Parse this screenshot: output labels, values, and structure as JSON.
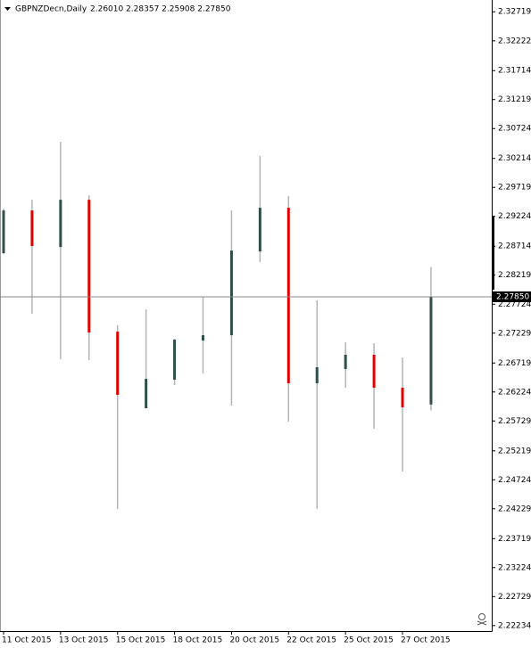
{
  "chart_data": {
    "type": "candlestick",
    "symbol": "GBPNZDecn,Daily",
    "ohlc_text": "2.26010 2.28357 2.25908 2.27850",
    "categories": [
      "11 Oct 2015",
      null,
      "13 Oct 2015",
      null,
      "15 Oct 2015",
      null,
      "18 Oct 2015",
      null,
      "20 Oct 2015",
      null,
      "22 Oct 2015",
      null,
      "25 Oct 2015",
      null,
      "27 Oct 2015",
      null
    ],
    "open": [
      2.28595,
      2.29325,
      2.28701,
      2.29508,
      2.27255,
      2.25946,
      2.26434,
      2.27103,
      2.27194,
      2.28625,
      2.29371,
      2.26373,
      2.26616,
      2.2686,
      2.26297,
      2.2601
    ],
    "high": [
      2.29356,
      2.29508,
      2.30497,
      2.29584,
      2.27362,
      2.27636,
      2.27134,
      2.27849,
      2.29325,
      2.30254,
      2.29569,
      2.27788,
      2.27073,
      2.27058,
      2.26814,
      2.28357
    ],
    "low": [
      2.28579,
      2.2756,
      2.26783,
      2.26768,
      2.24227,
      2.25946,
      2.26342,
      2.2654,
      2.25992,
      2.28443,
      2.25718,
      2.24227,
      2.26297,
      2.25597,
      2.24866,
      2.25908
    ],
    "close": [
      2.29325,
      2.28716,
      2.29508,
      2.2724,
      2.26175,
      2.26449,
      2.27118,
      2.27194,
      2.2864,
      2.29371,
      2.26373,
      2.26647,
      2.2686,
      2.26297,
      2.25962,
      2.2785
    ],
    "up_color": "#2f4f4f",
    "down_color": "#e00000",
    "wick_color": "#b4b4b4",
    "ylim": [
      2.2214,
      2.3292
    ],
    "yticks": [
      2.32719,
      2.32222,
      2.31714,
      2.31219,
      2.30724,
      2.30214,
      2.29719,
      2.29224,
      2.28714,
      2.28219,
      2.27724,
      2.27229,
      2.26719,
      2.26224,
      2.25729,
      2.25219,
      2.24724,
      2.24229,
      2.23719,
      2.23224,
      2.22729,
      2.22234
    ],
    "price_line": {
      "value": 2.2785,
      "label": "2.27850"
    }
  }
}
